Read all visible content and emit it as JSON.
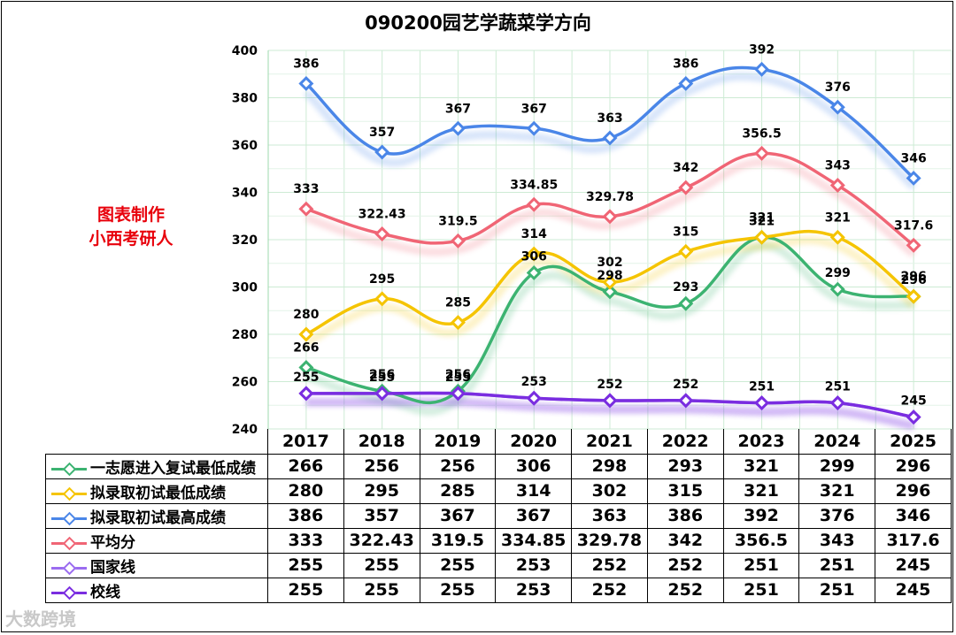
{
  "chart_data": {
    "type": "line",
    "title": "090200园艺学蔬菜学方向",
    "categories": [
      "2017",
      "2018",
      "2019",
      "2020",
      "2021",
      "2022",
      "2023",
      "2024",
      "2025"
    ],
    "ylim": [
      240,
      400
    ],
    "yticks": [
      240,
      260,
      280,
      300,
      320,
      340,
      360,
      380,
      400
    ],
    "grid": true,
    "legend": "table-below",
    "series": [
      {
        "name": "一志愿进入复试最低成绩",
        "color": "#3cb371",
        "values": [
          266,
          256,
          256,
          306,
          298,
          293,
          321,
          299,
          296
        ],
        "labels": [
          "266",
          "256",
          "256",
          "306",
          "298",
          "293",
          "321",
          "299",
          "296"
        ]
      },
      {
        "name": "拟录取初试最低成绩",
        "color": "#f5c400",
        "values": [
          280,
          295,
          285,
          314,
          302,
          315,
          321,
          321,
          296
        ],
        "labels": [
          "280",
          "295",
          "285",
          "314",
          "302",
          "315",
          "321",
          "321",
          "296"
        ]
      },
      {
        "name": "拟录取初试最高成绩",
        "color": "#4a86e8",
        "values": [
          386,
          357,
          367,
          367,
          363,
          386,
          392,
          376,
          346
        ],
        "labels": [
          "386",
          "357",
          "367",
          "367",
          "363",
          "386",
          "392",
          "376",
          "346"
        ]
      },
      {
        "name": "平均分",
        "color": "#f06575",
        "values": [
          333,
          322.43,
          319.5,
          334.85,
          329.78,
          342,
          356.5,
          343,
          317.6
        ],
        "labels": [
          "333",
          "322.43",
          "319.5",
          "334.85",
          "329.78",
          "342",
          "356.5",
          "343",
          "317.6"
        ]
      },
      {
        "name": "国家线",
        "color": "#9b6cf0",
        "values": [
          255,
          255,
          255,
          253,
          252,
          252,
          251,
          251,
          245
        ],
        "labels": [
          "255",
          "255",
          "255",
          "253",
          "252",
          "252",
          "251",
          "251",
          "245"
        ]
      },
      {
        "name": "校线",
        "color": "#7a2de0",
        "values": [
          255,
          255,
          255,
          253,
          252,
          252,
          251,
          251,
          245
        ],
        "labels": [
          "255",
          "255",
          "255",
          "253",
          "252",
          "252",
          "251",
          "251",
          "245"
        ]
      }
    ]
  },
  "watermark": {
    "line1": "图表制作",
    "line2": "小西考研人"
  },
  "footer_mark": "大数跨境"
}
